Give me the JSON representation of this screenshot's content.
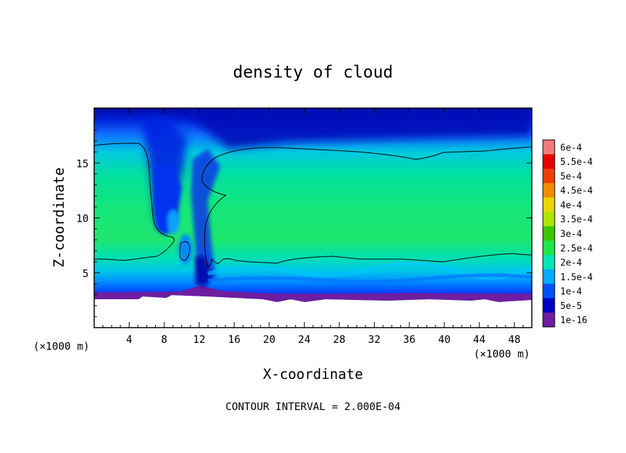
{
  "chart_data": {
    "type": "heatmap",
    "title": "density of cloud",
    "xlabel": "X-coordinate",
    "ylabel": "Z-coordinate",
    "x_unit_left": "(×1000 m)",
    "x_unit_right": "(×1000 m)",
    "xlim": [
      0,
      50
    ],
    "ylim": [
      0,
      20
    ],
    "xticks": [
      4,
      8,
      12,
      16,
      20,
      24,
      28,
      32,
      36,
      40,
      44,
      48
    ],
    "yticks": [
      5,
      10,
      15
    ],
    "footer": "CONTOUR INTERVAL = 2.000E-04",
    "colorbar": {
      "labels": [
        "6e-4",
        "5.5e-4",
        "5e-4",
        "4.5e-4",
        "4e-4",
        "3.5e-4",
        "3e-4",
        "2.5e-4",
        "2e-4",
        "1.5e-4",
        "1e-4",
        "5e-5",
        "1e-16"
      ],
      "colors": [
        "#f07b7b",
        "#e80000",
        "#f03c00",
        "#f08c00",
        "#e6d800",
        "#aee600",
        "#3cc800",
        "#1ee64b",
        "#00e6b4",
        "#00aaff",
        "#0050ff",
        "#0000c8",
        "#6e1ea0"
      ]
    },
    "contour_level": 0.0002,
    "cloud_base_z": 2.6,
    "features": {
      "updraft_core_x": 12,
      "gap_x_range": [
        7,
        13
      ]
    }
  }
}
